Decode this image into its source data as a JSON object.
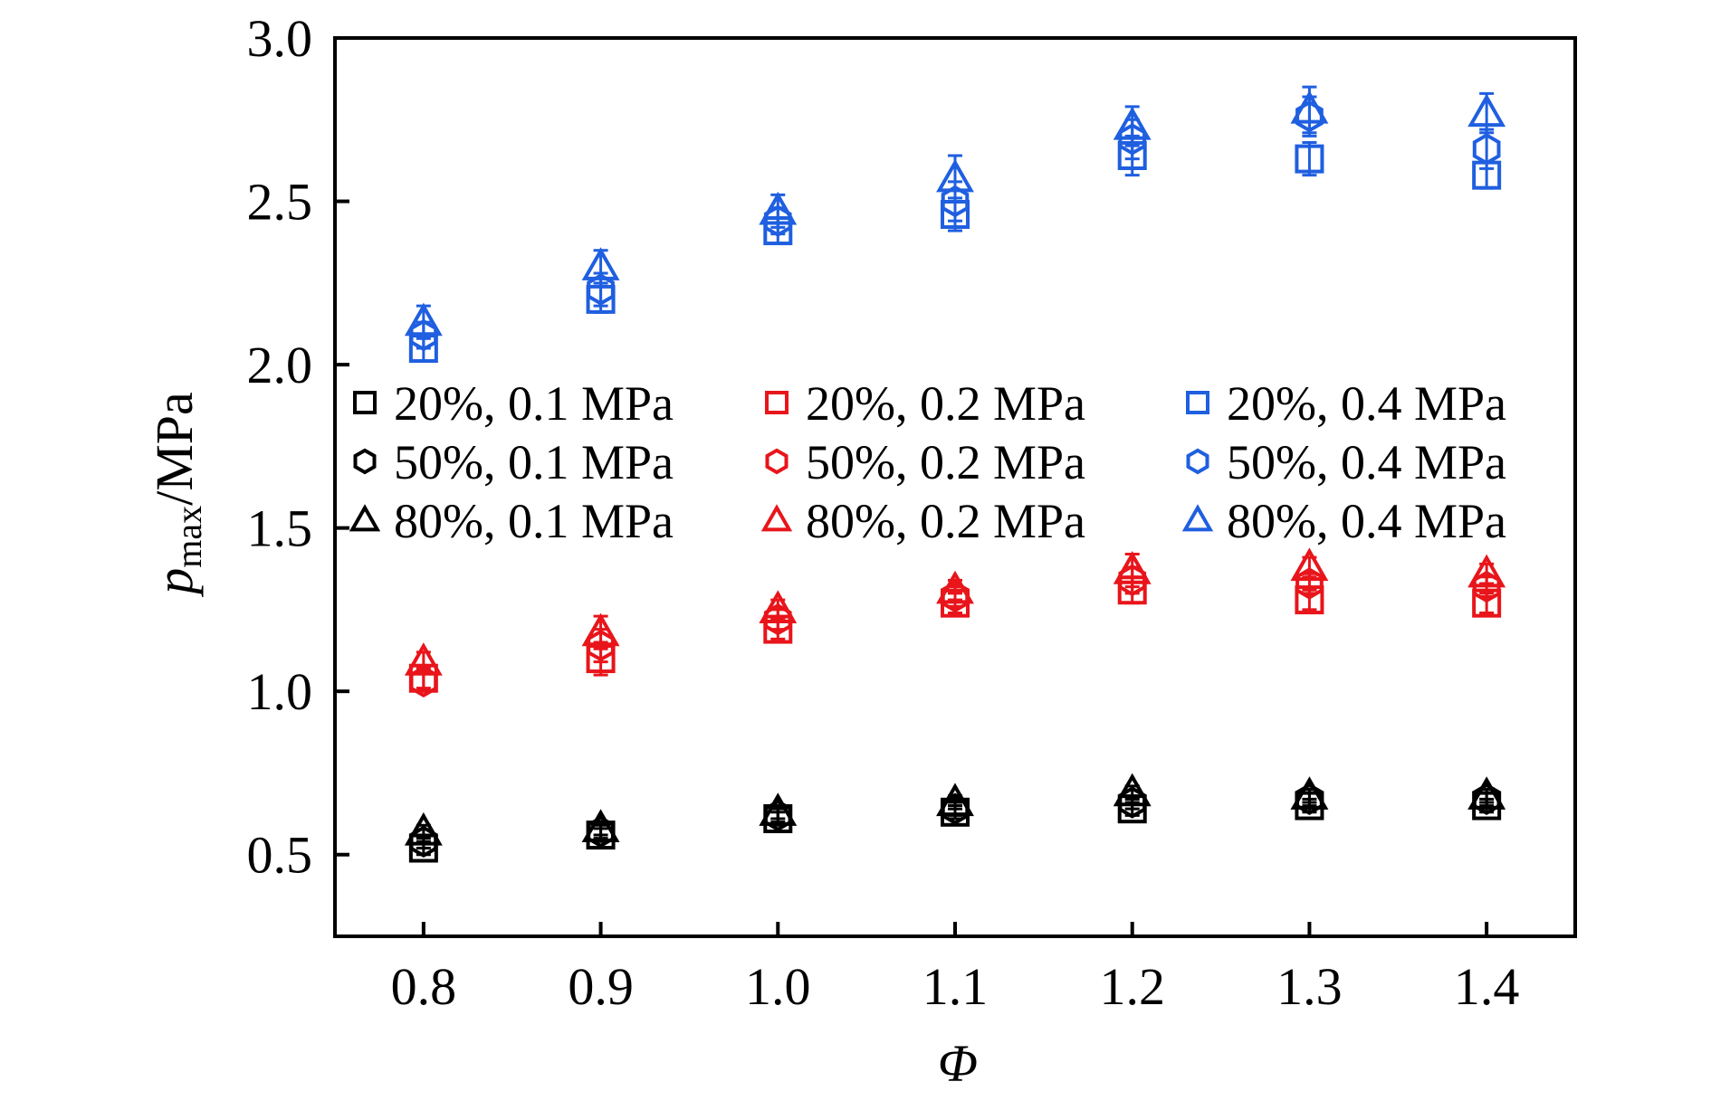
{
  "chart_data": {
    "type": "scatter",
    "title": "",
    "xlabel": "Φ",
    "ylabel_main": "p",
    "ylabel_sub": "max",
    "ylabel_unit": "/MPa",
    "xlim": [
      0.75,
      1.45
    ],
    "ylim": [
      0.25,
      3.0
    ],
    "xticks": [
      0.8,
      0.9,
      1.0,
      1.1,
      1.2,
      1.3,
      1.4
    ],
    "xtick_labels": [
      "0.8",
      "0.9",
      "1.0",
      "1.1",
      "1.2",
      "1.3",
      "1.4"
    ],
    "yticks": [
      0.5,
      1.0,
      1.5,
      2.0,
      2.5,
      3.0
    ],
    "ytick_labels": [
      "0.5",
      "1.0",
      "1.5",
      "2.0",
      "2.5",
      "3.0"
    ],
    "grid": false,
    "legend_position": "center",
    "x": [
      0.8,
      0.9,
      1.0,
      1.1,
      1.2,
      1.3,
      1.4
    ],
    "colors": {
      "0.1 MPa": "#000000",
      "0.2 MPa": "#e8151b",
      "0.4 MPa": "#1f5fe0"
    },
    "series": [
      {
        "name": "20%, 0.1 MPa",
        "marker": "square",
        "color": "#000000",
        "values": [
          0.52,
          0.56,
          0.61,
          0.63,
          0.64,
          0.65,
          0.65
        ],
        "errors": [
          0.02,
          0.02,
          0.02,
          0.02,
          0.02,
          0.02,
          0.02
        ]
      },
      {
        "name": "50%, 0.1 MPa",
        "marker": "hexagon",
        "color": "#000000",
        "values": [
          0.54,
          0.57,
          0.62,
          0.64,
          0.66,
          0.67,
          0.67
        ],
        "errors": [
          0.02,
          0.02,
          0.02,
          0.02,
          0.02,
          0.02,
          0.02
        ]
      },
      {
        "name": "80%, 0.1 MPa",
        "marker": "triangle",
        "color": "#000000",
        "values": [
          0.57,
          0.58,
          0.63,
          0.66,
          0.69,
          0.68,
          0.68
        ],
        "errors": [
          0.02,
          0.02,
          0.02,
          0.02,
          0.02,
          0.02,
          0.02
        ]
      },
      {
        "name": "20%, 0.2 MPa",
        "marker": "square",
        "color": "#e8151b",
        "values": [
          1.04,
          1.1,
          1.19,
          1.27,
          1.31,
          1.28,
          1.27
        ],
        "errors": [
          0.03,
          0.05,
          0.03,
          0.03,
          0.04,
          0.03,
          0.03
        ]
      },
      {
        "name": "50%, 0.2 MPa",
        "marker": "hexagon",
        "color": "#e8151b",
        "values": [
          1.03,
          1.14,
          1.22,
          1.29,
          1.34,
          1.33,
          1.32
        ],
        "errors": [
          0.03,
          0.05,
          0.03,
          0.03,
          0.04,
          0.03,
          0.03
        ]
      },
      {
        "name": "80%, 0.2 MPa",
        "marker": "triangle",
        "color": "#e8151b",
        "values": [
          1.09,
          1.18,
          1.25,
          1.31,
          1.37,
          1.38,
          1.36
        ],
        "errors": [
          0.03,
          0.05,
          0.03,
          0.03,
          0.05,
          0.03,
          0.03
        ]
      },
      {
        "name": "20%, 0.4 MPa",
        "marker": "square",
        "color": "#1f5fe0",
        "values": [
          2.05,
          2.2,
          2.41,
          2.46,
          2.64,
          2.63,
          2.58
        ],
        "errors": [
          0.04,
          0.04,
          0.04,
          0.05,
          0.06,
          0.05,
          0.04
        ]
      },
      {
        "name": "50%, 0.4 MPa",
        "marker": "hexagon",
        "color": "#1f5fe0",
        "values": [
          2.09,
          2.23,
          2.44,
          2.5,
          2.69,
          2.76,
          2.66
        ],
        "errors": [
          0.04,
          0.05,
          0.04,
          0.06,
          0.06,
          0.06,
          0.06
        ]
      },
      {
        "name": "80%, 0.4 MPa",
        "marker": "triangle",
        "color": "#1f5fe0",
        "values": [
          2.13,
          2.3,
          2.47,
          2.57,
          2.73,
          2.78,
          2.77
        ],
        "errors": [
          0.05,
          0.05,
          0.05,
          0.07,
          0.06,
          0.07,
          0.06
        ]
      }
    ]
  }
}
